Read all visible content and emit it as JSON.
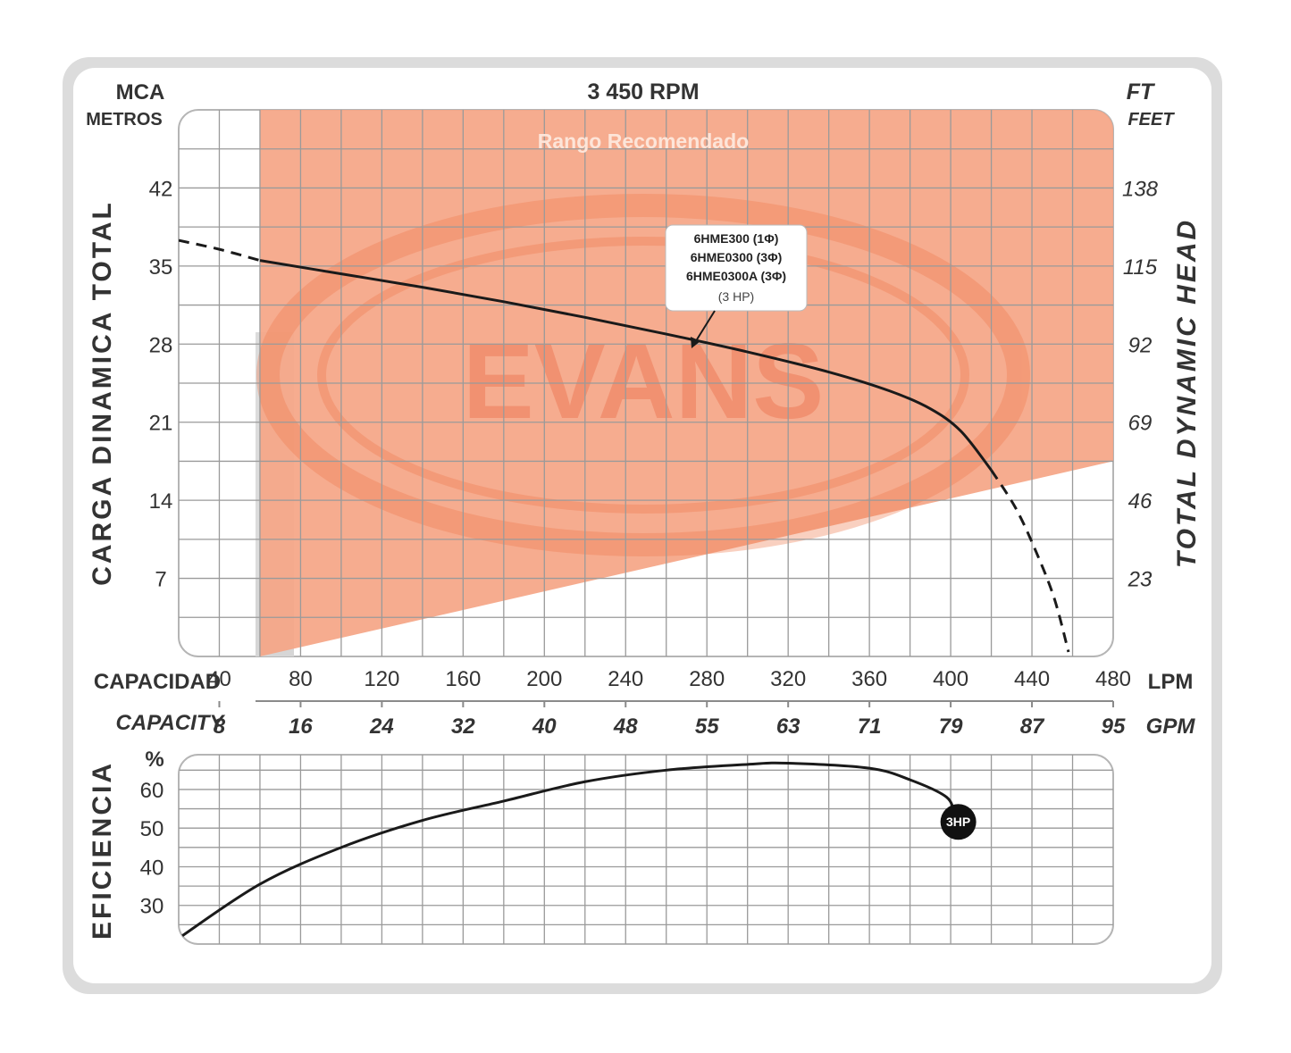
{
  "chart_data": [
    {
      "type": "line",
      "title": "3 450 RPM",
      "left_axis": {
        "unit_top": "MCA",
        "unit_bottom": "METROS",
        "label": "CARGA DINAMICA TOTAL",
        "ticks": [
          7,
          14,
          21,
          28,
          35,
          42
        ],
        "ylim": [
          0,
          49
        ]
      },
      "right_axis": {
        "unit_top": "FT",
        "unit_bottom": "FEET",
        "label": "TOTAL DYNAMIC HEAD",
        "ticks": [
          "23",
          "46",
          "69",
          "92",
          "115",
          "138"
        ]
      },
      "x_axis": {
        "label": "CAPACIDAD",
        "unit": "LPM",
        "ticks": [
          40,
          80,
          120,
          160,
          200,
          240,
          280,
          320,
          360,
          400,
          440,
          480
        ],
        "xlim": [
          20,
          480
        ]
      },
      "x_axis_secondary": {
        "label": "CAPACITY",
        "unit": "GPM",
        "ticks": [
          "8",
          "16",
          "24",
          "32",
          "40",
          "48",
          "55",
          "63",
          "71",
          "79",
          "87",
          "95"
        ]
      },
      "recommended_range": {
        "label": "Rango Recomendado",
        "color": "#f5a586",
        "polygon": [
          [
            60,
            0
          ],
          [
            480,
            17.5
          ],
          [
            480,
            49
          ],
          [
            60,
            49
          ]
        ]
      },
      "watermark": "EVANS",
      "annotation": {
        "lines": [
          "6HME300 (1Φ)",
          "6HME0300 (3Φ)",
          "6HME0300A (3Φ)",
          "(3 HP)"
        ],
        "points_to": [
          240,
          26.8
        ]
      },
      "series": [
        {
          "name": "6HME300 (1Φ) / 6HME0300 (3Φ) / 6HME0300A (3Φ) (3 HP)",
          "dashed_start": [
            [
              20,
              37.3
            ],
            [
              40,
              36.5
            ],
            [
              60,
              35.5
            ]
          ],
          "solid": [
            [
              60,
              35.5
            ],
            [
              100,
              34.3
            ],
            [
              140,
              33.1
            ],
            [
              180,
              31.8
            ],
            [
              220,
              30.4
            ],
            [
              260,
              28.9
            ],
            [
              300,
              27.3
            ],
            [
              340,
              25.5
            ],
            [
              370,
              23.8
            ],
            [
              390,
              22.2
            ],
            [
              405,
              20.2
            ],
            [
              420,
              16.7
            ]
          ],
          "dashed_end": [
            [
              420,
              16.7
            ],
            [
              432,
              13.3
            ],
            [
              442,
              9.4
            ],
            [
              451,
              5.2
            ],
            [
              458,
              0.4
            ]
          ]
        }
      ]
    },
    {
      "type": "line",
      "ylabel": "EFICIENCIA",
      "y_unit": "%",
      "y_ticks": [
        30,
        40,
        50,
        60
      ],
      "ylim": [
        20,
        69
      ],
      "xlim": [
        20,
        480
      ],
      "series": [
        {
          "name": "3HP",
          "points": [
            [
              20,
              21.5
            ],
            [
              60,
              35.5
            ],
            [
              100,
              45
            ],
            [
              140,
              52
            ],
            [
              180,
              57
            ],
            [
              220,
              62
            ],
            [
              260,
              65
            ],
            [
              300,
              66.5
            ],
            [
              320,
              66.8
            ],
            [
              360,
              65.5
            ],
            [
              380,
              62.5
            ],
            [
              398,
              58
            ],
            [
              402,
              53
            ]
          ]
        }
      ],
      "end_badge": "3HP"
    }
  ],
  "colors": {
    "accent": "#f5a586",
    "curve": "#1a1a1a",
    "grid": "#9a9a9a",
    "frame": "#dcdcdc"
  }
}
